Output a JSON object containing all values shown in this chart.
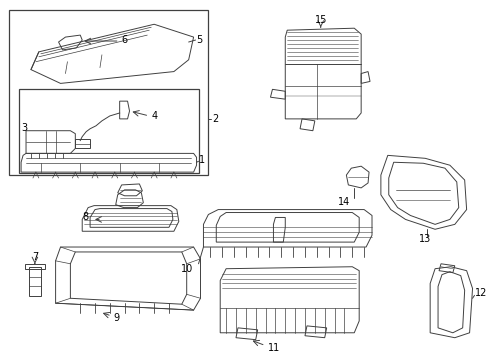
{
  "background_color": "#ffffff",
  "line_color": "#404040",
  "text_color": "#000000",
  "fig_width": 4.89,
  "fig_height": 3.6,
  "dpi": 100
}
